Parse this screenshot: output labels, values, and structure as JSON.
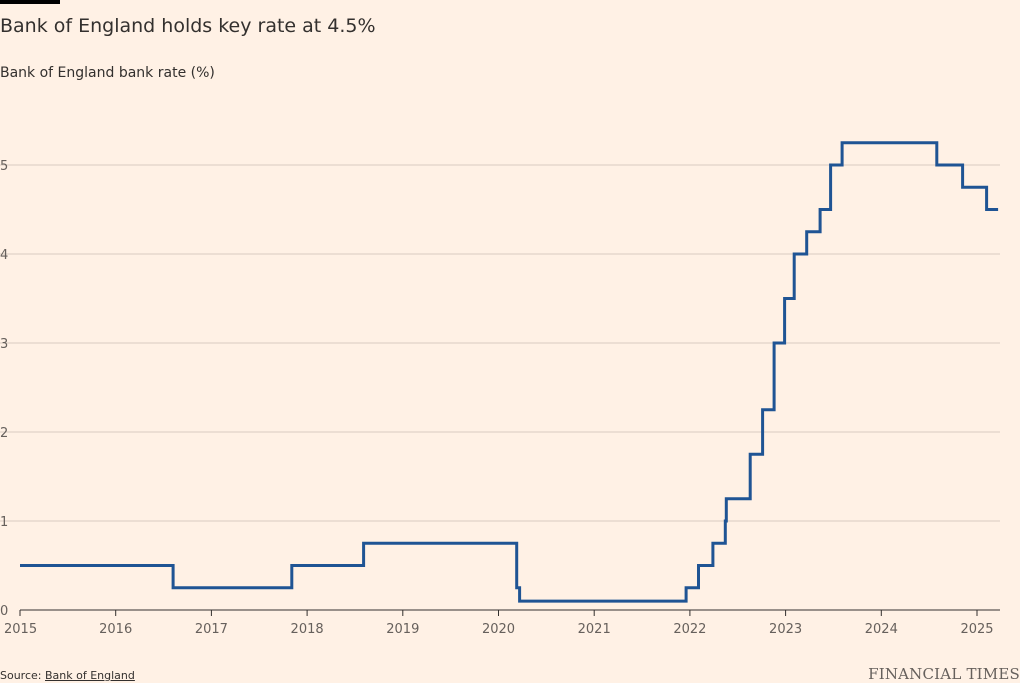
{
  "header": {
    "title": "Bank of England holds key rate at 4.5%",
    "subtitle": "Bank of England bank rate (%)"
  },
  "footer": {
    "source_prefix": "Source:",
    "source_link": "Bank of England",
    "brand": "FINANCIAL TIMES"
  },
  "colors": {
    "background": "#FFF1E5",
    "line": "#1F5494",
    "grid": "#D9CCC1",
    "text": "#33302E"
  },
  "chart_data": {
    "type": "line",
    "step": true,
    "title": "Bank of England holds key rate at 4.5%",
    "subtitle": "Bank of England bank rate (%)",
    "xlabel": "",
    "ylabel": "",
    "xlim": [
      2015.0,
      2025.22
    ],
    "ylim": [
      0,
      5.5
    ],
    "x_ticks": [
      2015,
      2016,
      2017,
      2018,
      2019,
      2020,
      2021,
      2022,
      2023,
      2024,
      2025
    ],
    "x_tick_labels": [
      "2015",
      "2016",
      "2017",
      "2018",
      "2019",
      "2020",
      "2021",
      "2022",
      "2023",
      "2024",
      "2025"
    ],
    "y_ticks": [
      0,
      1,
      2,
      3,
      4,
      5
    ],
    "y_tick_labels": [
      "0",
      "1",
      "2",
      "3",
      "4",
      "5"
    ],
    "grid": true,
    "series": [
      {
        "name": "",
        "points": [
          {
            "x": 2015.0,
            "y": 0.5
          },
          {
            "x": 2016.6,
            "y": 0.25
          },
          {
            "x": 2017.84,
            "y": 0.5
          },
          {
            "x": 2018.59,
            "y": 0.75
          },
          {
            "x": 2020.19,
            "y": 0.25
          },
          {
            "x": 2020.22,
            "y": 0.1
          },
          {
            "x": 2021.96,
            "y": 0.25
          },
          {
            "x": 2022.09,
            "y": 0.5
          },
          {
            "x": 2022.24,
            "y": 0.75
          },
          {
            "x": 2022.37,
            "y": 1.0
          },
          {
            "x": 2022.38,
            "y": 1.25
          },
          {
            "x": 2022.63,
            "y": 1.75
          },
          {
            "x": 2022.76,
            "y": 2.25
          },
          {
            "x": 2022.88,
            "y": 3.0
          },
          {
            "x": 2022.99,
            "y": 3.5
          },
          {
            "x": 2023.09,
            "y": 4.0
          },
          {
            "x": 2023.22,
            "y": 4.25
          },
          {
            "x": 2023.36,
            "y": 4.5
          },
          {
            "x": 2023.47,
            "y": 5.0
          },
          {
            "x": 2023.59,
            "y": 5.25
          },
          {
            "x": 2024.58,
            "y": 5.0
          },
          {
            "x": 2024.85,
            "y": 4.75
          },
          {
            "x": 2025.1,
            "y": 4.5
          },
          {
            "x": 2025.22,
            "y": 4.5
          }
        ]
      }
    ]
  }
}
